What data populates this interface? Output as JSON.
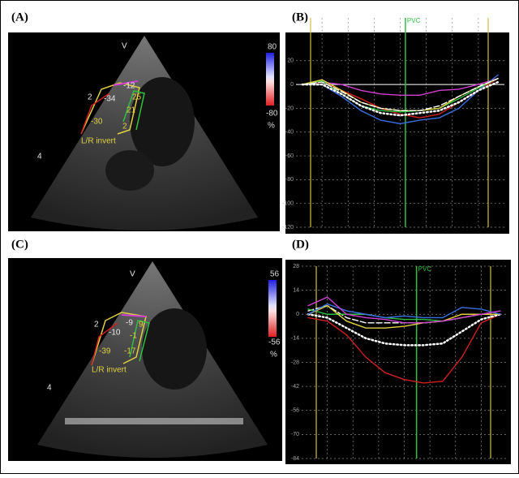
{
  "panel_labels": [
    "(A)",
    "(B)",
    "(C)",
    "(D)"
  ],
  "echo_a": {
    "marker_v": "V",
    "marker_2": "2",
    "marker_4": "4",
    "segments": [
      "-12",
      "-34",
      "-30",
      "25",
      "21",
      "2"
    ],
    "note": "L/R invert",
    "colorbar_max": "80",
    "colorbar_min": "-80",
    "colorbar_unit": "%"
  },
  "echo_c": {
    "marker_v": "V",
    "marker_2": "2",
    "marker_4": "4",
    "segments": [
      "-9",
      "-10",
      "-39",
      "9",
      "-1",
      "-17"
    ],
    "note": "L/R invert",
    "colorbar_max": "56",
    "colorbar_min": "-56",
    "colorbar_unit": "%"
  },
  "chart_data": [
    {
      "type": "line",
      "annotation": "PVC",
      "categories": [
        null,
        null,
        null,
        null,
        null,
        null,
        null,
        null,
        null,
        null,
        null
      ],
      "ylim": [
        -120,
        56
      ],
      "yticks": [
        20,
        0,
        -20,
        -40,
        -60,
        -80,
        -100,
        -120
      ],
      "grid": true,
      "series": [
        {
          "color": "#d040d0",
          "linestyle": "solid",
          "values": [
            0,
            2,
            0,
            -5,
            -8,
            -9,
            -9,
            -5,
            -4,
            0,
            5
          ]
        },
        {
          "color": "#d02020",
          "linestyle": "solid",
          "values": [
            0,
            2,
            -5,
            -12,
            -20,
            -25,
            -28,
            -25,
            -15,
            -5,
            5
          ]
        },
        {
          "color": "#3a6fe0",
          "linestyle": "solid",
          "values": [
            0,
            0,
            -10,
            -22,
            -30,
            -33,
            -30,
            -28,
            -20,
            -5,
            8
          ]
        },
        {
          "color": "#30c040",
          "linestyle": "solid",
          "values": [
            0,
            3,
            -8,
            -18,
            -22,
            -23,
            -22,
            -20,
            -12,
            -3,
            5
          ]
        },
        {
          "color": "#e0d040",
          "linestyle": "solid",
          "values": [
            0,
            4,
            -5,
            -15,
            -20,
            -22,
            -22,
            -20,
            -10,
            -2,
            5
          ]
        },
        {
          "color": "#ffffff",
          "linestyle": "dashed",
          "values": [
            0,
            2,
            -6,
            -15,
            -20,
            -22,
            -22,
            -18,
            -10,
            -2,
            5
          ]
        },
        {
          "color": "#ffffff",
          "linestyle": "dotted",
          "values": [
            0,
            0,
            -8,
            -18,
            -24,
            -26,
            -24,
            -22,
            -15,
            -5,
            2
          ]
        }
      ]
    },
    {
      "type": "line",
      "annotation": "PVC",
      "categories": [
        null,
        null,
        null,
        null,
        null,
        null,
        null,
        null,
        null,
        null,
        null
      ],
      "ylim": [
        -84,
        28
      ],
      "yticks": [
        28,
        14,
        0,
        -14,
        -28,
        -42,
        -56,
        -70,
        -84
      ],
      "grid": true,
      "series": [
        {
          "color": "#d02020",
          "linestyle": "solid",
          "values": [
            -2,
            -4,
            -12,
            -25,
            -34,
            -38,
            -40,
            -39,
            -25,
            -5,
            0
          ]
        },
        {
          "color": "#ffffff",
          "linestyle": "dotted",
          "values": [
            0,
            -2,
            -8,
            -14,
            -17,
            -18,
            -18,
            -17,
            -10,
            -3,
            0
          ]
        },
        {
          "color": "#ffffff",
          "linestyle": "dashed",
          "values": [
            2,
            5,
            -2,
            -5,
            -5,
            -5,
            -5,
            -4,
            -2,
            0,
            0
          ]
        },
        {
          "color": "#30c040",
          "linestyle": "solid",
          "values": [
            3,
            0,
            0,
            0,
            -2,
            -3,
            -3,
            -4,
            -2,
            0,
            0
          ]
        },
        {
          "color": "#e0d040",
          "linestyle": "solid",
          "values": [
            0,
            5,
            -4,
            -8,
            -8,
            -7,
            -5,
            -4,
            0,
            0,
            0
          ]
        },
        {
          "color": "#3a6fe0",
          "linestyle": "solid",
          "values": [
            0,
            6,
            2,
            0,
            -2,
            -1,
            -2,
            -2,
            4,
            3,
            0
          ]
        },
        {
          "color": "#d040d0",
          "linestyle": "solid",
          "values": [
            5,
            10,
            0,
            -2,
            -3,
            -5,
            -5,
            -4,
            -2,
            0,
            2
          ]
        }
      ]
    }
  ]
}
